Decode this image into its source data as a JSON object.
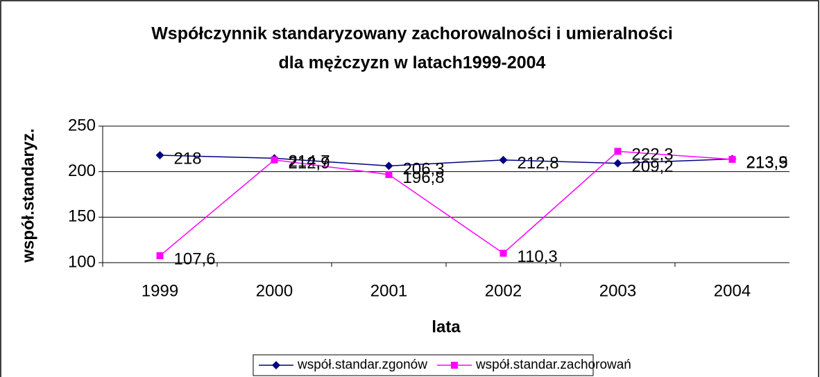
{
  "chart_data": {
    "type": "line",
    "title": [
      "Współczynnik standaryzowany zachorowalności i umieralności",
      "dla mężczyzn w latach1999-2004"
    ],
    "x_label": "lata",
    "y_label": "współ.standaryz.",
    "categories": [
      "1999",
      "2000",
      "2001",
      "2002",
      "2003",
      "2004"
    ],
    "series": [
      {
        "name": "współ.standar.zgonów",
        "color": "#000080",
        "marker": "diamond",
        "values": [
          218,
          214.7,
          206.3,
          212.8,
          209.2,
          213.9
        ],
        "value_labels": [
          "218",
          "214,7",
          "206,3",
          "212,8",
          "209,2",
          "213,9"
        ]
      },
      {
        "name": "współ.standar.zachorowań",
        "color": "#ff00ff",
        "marker": "square",
        "values": [
          107.6,
          212.9,
          196.8,
          110.3,
          222.3,
          213.5
        ],
        "value_labels": [
          "107,6",
          "212,9",
          "196,8",
          "110,3",
          "222,3",
          "213,5"
        ]
      }
    ],
    "ylim": [
      100,
      250
    ],
    "yticks": [
      100,
      150,
      200,
      250
    ],
    "grid": true,
    "legend": "bottom"
  }
}
